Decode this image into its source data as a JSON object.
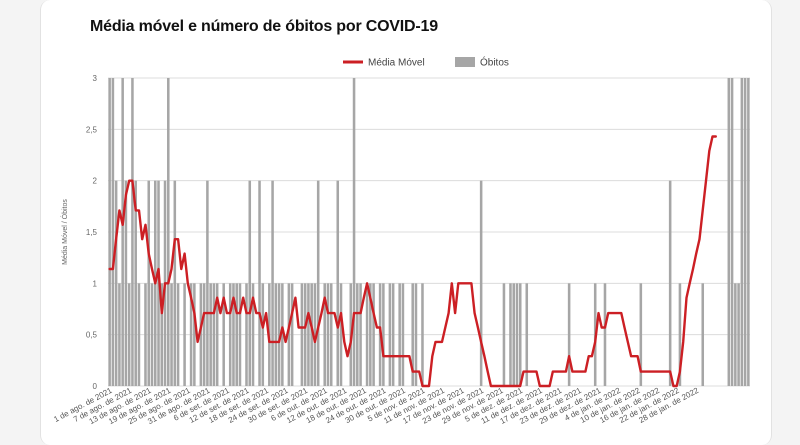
{
  "chart_data": {
    "type": "bar+line",
    "title": "Média móvel e número de óbitos por COVID-19",
    "xlabel": "",
    "ylabel": "Média Móvel / Óbitos",
    "ylim": [
      0,
      3
    ],
    "yticks": [
      "0",
      "0,5",
      "1",
      "1,5",
      "2",
      "2,5",
      "3"
    ],
    "grid": true,
    "legend_position": "top",
    "colors": {
      "line": "#cc1f24",
      "bars": "#a6a6a6",
      "grid": "#dcdcdc"
    },
    "x_tick_labels": [
      "1 de ago. de 2021",
      "7 de ago. de 2021",
      "13 de ago. de 2021",
      "19 de ago. de 2021",
      "25 de ago. de 2021",
      "31 de ago. de 2021",
      "6 de set. de 2021",
      "12 de set. de 2021",
      "18 de set. de 2021",
      "24 de set. de 2021",
      "30 de set. de 2021",
      "6 de out. de 2021",
      "12 de out. de 2021",
      "18 de out. de 2021",
      "24 de out. de 2021",
      "30 de out. de 2021",
      "5 de nov. de 2021",
      "11 de nov. de 2021",
      "17 de nov. de 2021",
      "23 de nov. de 2021",
      "29 de nov. de 2021",
      "5 de dez. de 2021",
      "11 de dez. de 2021",
      "17 de dez. de 2021",
      "23 de dez. de 2021",
      "29 de dez. de 2021",
      "4 de jan. de 2022",
      "10 de jan. de 2022",
      "16 de jan. de 2022",
      "22 de jan. de 2022",
      "28 de jan. de 2022"
    ],
    "series": [
      {
        "name": "Óbitos",
        "type": "bar",
        "x_start": "2021-08-01",
        "values": [
          3,
          3,
          2,
          1,
          3,
          2,
          1,
          3,
          2,
          1,
          0,
          1,
          2,
          1,
          2,
          2,
          1,
          2,
          3,
          1,
          2,
          1,
          0,
          1,
          0,
          1,
          1,
          0,
          1,
          1,
          2,
          1,
          1,
          1,
          0,
          1,
          0,
          1,
          1,
          1,
          1,
          0,
          1,
          2,
          1,
          0,
          2,
          1,
          0,
          1,
          2,
          1,
          1,
          1,
          0,
          1,
          1,
          0,
          0,
          1,
          1,
          1,
          1,
          1,
          2,
          0,
          1,
          1,
          1,
          0,
          2,
          1,
          0,
          0,
          1,
          3,
          1,
          1,
          0,
          1,
          1,
          1,
          0,
          1,
          1,
          0,
          1,
          1,
          0,
          1,
          1,
          0,
          0,
          1,
          1,
          0,
          1,
          0,
          0,
          0,
          0,
          0,
          0,
          0,
          0,
          0,
          0,
          0,
          0,
          0,
          0,
          0,
          0,
          0,
          2,
          0,
          0,
          0,
          0,
          0,
          0,
          1,
          0,
          1,
          1,
          1,
          1,
          0,
          1,
          0,
          0,
          0,
          0,
          0,
          0,
          0,
          0,
          0,
          0,
          0,
          0,
          1,
          0,
          0,
          0,
          0,
          0,
          0,
          0,
          1,
          0,
          0,
          1,
          0,
          0,
          0,
          0,
          0,
          0,
          0,
          0,
          0,
          0,
          1,
          0,
          0,
          0,
          0,
          0,
          0,
          0,
          0,
          2,
          0,
          0,
          1,
          0,
          0,
          0,
          0,
          0,
          0,
          1,
          0,
          0,
          0,
          0,
          0,
          0,
          0,
          3,
          3,
          1,
          1,
          3,
          3,
          3
        ]
      },
      {
        "name": "Média Móvel",
        "type": "line",
        "x_start": "2021-08-01",
        "values": [
          1.14,
          1.14,
          1.43,
          1.71,
          1.57,
          1.86,
          2.0,
          2.0,
          1.71,
          1.71,
          1.43,
          1.57,
          1.29,
          1.14,
          1.0,
          1.14,
          0.71,
          1.0,
          1.0,
          1.14,
          1.43,
          1.43,
          1.14,
          1.29,
          1.0,
          0.86,
          0.71,
          0.43,
          0.57,
          0.71,
          0.71,
          0.71,
          0.71,
          0.86,
          0.71,
          0.86,
          0.71,
          0.71,
          0.86,
          0.71,
          0.71,
          0.86,
          0.71,
          0.71,
          0.86,
          0.71,
          0.71,
          0.57,
          0.71,
          0.43,
          0.43,
          0.43,
          0.43,
          0.57,
          0.43,
          0.57,
          0.71,
          0.86,
          0.57,
          0.57,
          0.57,
          0.71,
          0.57,
          0.43,
          0.57,
          0.71,
          0.86,
          0.71,
          0.71,
          0.71,
          0.57,
          0.71,
          0.43,
          0.29,
          0.43,
          0.71,
          0.71,
          0.71,
          0.86,
          1.0,
          0.86,
          0.71,
          0.57,
          0.57,
          0.29,
          0.29,
          0.29,
          0.29,
          0.29,
          0.29,
          0.29,
          0.29,
          0.29,
          0.14,
          0.14,
          0.14,
          0.0,
          0.0,
          0.0,
          0.29,
          0.43,
          0.43,
          0.43,
          0.57,
          0.71,
          1.0,
          0.71,
          1.0,
          1.0,
          1.0,
          1.0,
          1.0,
          0.71,
          0.57,
          0.43,
          0.29,
          0.14,
          0.0,
          0.0,
          0.0,
          0.0,
          0.0,
          0.0,
          0.0,
          0.0,
          0.0,
          0.0,
          0.14,
          0.14,
          0.14,
          0.14,
          0.14,
          0.0,
          0.0,
          0.0,
          0.0,
          0.14,
          0.14,
          0.14,
          0.14,
          0.14,
          0.29,
          0.14,
          0.14,
          0.14,
          0.14,
          0.14,
          0.29,
          0.29,
          0.43,
          0.71,
          0.57,
          0.57,
          0.71,
          0.71,
          0.71,
          0.71,
          0.71,
          0.57,
          0.43,
          0.29,
          0.29,
          0.29,
          0.14,
          0.14,
          0.14,
          0.14,
          0.14,
          0.14,
          0.14,
          0.14,
          0.14,
          0.14,
          0.0,
          0.0,
          0.14,
          0.43,
          0.86,
          1.0,
          1.14,
          1.29,
          1.43,
          1.71,
          2.0,
          2.29,
          2.43,
          2.43
        ]
      }
    ]
  }
}
